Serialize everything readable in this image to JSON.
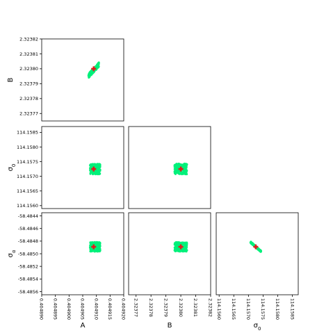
{
  "chart_data": {
    "type": "scatter",
    "title": "",
    "grid": false,
    "colors": {
      "samples": "#00f07a",
      "truth": "#e41a1c",
      "frame": "#000000"
    },
    "variables": [
      {
        "name": "A",
        "label_main": "A",
        "label_sub": "",
        "range": [
          0.40489,
          0.40492
        ],
        "ticks": [
          "0.404890",
          "0.404895",
          "0.404900",
          "0.404905",
          "0.404910",
          "0.404915",
          "0.404920"
        ],
        "tick_values": [
          0.40489,
          0.404895,
          0.4049,
          0.404905,
          0.40491,
          0.404915,
          0.40492
        ]
      },
      {
        "name": "B",
        "label_main": "B",
        "label_sub": "",
        "range": [
          2.323765,
          2.32382
        ],
        "ticks": [
          "2.32377",
          "2.32378",
          "2.32379",
          "2.32380",
          "2.32381",
          "2.32382"
        ],
        "tick_values": [
          2.32377,
          2.32378,
          2.32379,
          2.3238,
          2.32381,
          2.32382
        ]
      },
      {
        "name": "σ0",
        "label_main": "σ",
        "label_sub": "0",
        "range": [
          114.1559,
          114.1587
        ],
        "ticks": [
          "114.1560",
          "114.1565",
          "114.1570",
          "114.1575",
          "114.1580",
          "114.1585"
        ],
        "tick_values": [
          114.156,
          114.1565,
          114.157,
          114.1575,
          114.158,
          114.1585
        ]
      },
      {
        "name": "σα",
        "label_main": "σ",
        "label_sub": "α",
        "range": [
          -58.48565,
          -58.48435
        ],
        "ticks": [
          "-58.4844",
          "-58.4846",
          "-58.4848",
          "-58.4850",
          "-58.4852",
          "-58.4854",
          "-58.4856"
        ],
        "tick_values": [
          -58.4844,
          -58.4846,
          -58.4848,
          -58.485,
          -58.4852,
          -58.4854,
          -58.4856
        ]
      }
    ],
    "truth": {
      "A": 0.404909,
      "B": 2.3238,
      "σ0": 114.15725,
      "σα": -58.48489
    },
    "panels": [
      {
        "row": 1,
        "col": 0,
        "cloud": {
          "center": [
            0.404909,
            2.323799
          ],
          "spread": [
            1.9e-06,
            4e-06
          ],
          "corr": 0.93,
          "n": 220
        }
      },
      {
        "row": 2,
        "col": 0,
        "cloud": {
          "center": [
            0.4049095,
            114.15725
          ],
          "spread": [
            1.9e-06,
            0.00018
          ],
          "corr": 0.0,
          "n": 220
        }
      },
      {
        "row": 2,
        "col": 1,
        "cloud": {
          "center": [
            2.3238,
            114.15725
          ],
          "spread": [
            4.2e-06,
            0.00018
          ],
          "corr": 0.0,
          "n": 220
        }
      },
      {
        "row": 3,
        "col": 0,
        "cloud": {
          "center": [
            0.4049095,
            -58.48489
          ],
          "spread": [
            1.9e-06,
            7.5e-05
          ],
          "corr": 0.0,
          "n": 220
        }
      },
      {
        "row": 3,
        "col": 1,
        "cloud": {
          "center": [
            2.3238,
            -58.48489
          ],
          "spread": [
            4.2e-06,
            7.5e-05
          ],
          "corr": 0.0,
          "n": 220
        }
      },
      {
        "row": 3,
        "col": 2,
        "cloud": {
          "center": [
            114.15725,
            -58.48489
          ],
          "spread": [
            0.00018,
            7.5e-05
          ],
          "corr": -0.985,
          "n": 220
        }
      }
    ]
  }
}
